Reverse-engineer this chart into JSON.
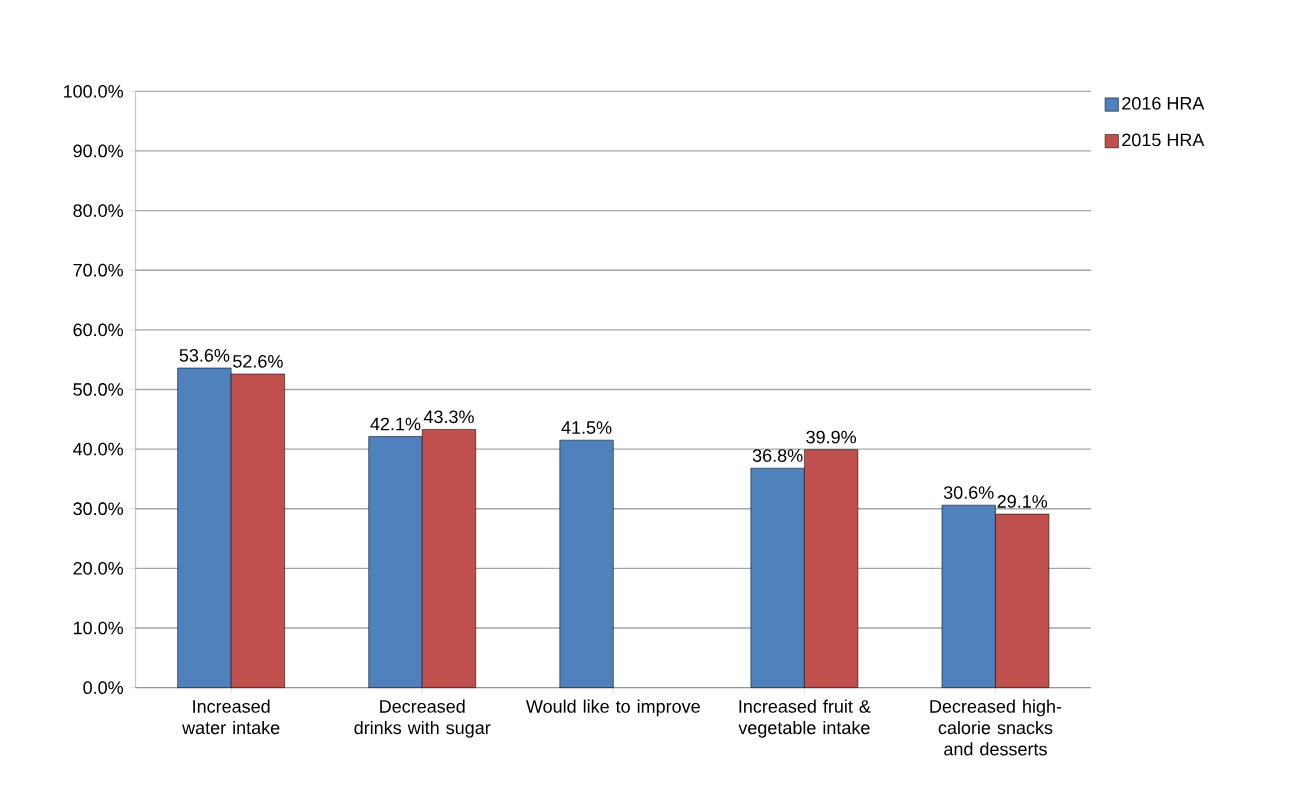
{
  "chart_data": {
    "type": "bar",
    "categories": [
      "Increased water intake",
      "Decreased drinks with sugar",
      "Would like to improve",
      "Increased fruit & vegetable intake",
      "Decreased high-calorie snacks and desserts"
    ],
    "series": [
      {
        "name": "2016 HRA",
        "color": "#4f81bd",
        "values": [
          53.6,
          42.1,
          41.5,
          36.8,
          30.6
        ],
        "value_labels": [
          "53.6%",
          "42.1%",
          "41.5%",
          "36.8%",
          "30.6%"
        ]
      },
      {
        "name": "2015 HRA",
        "color": "#c0504d",
        "values": [
          52.6,
          43.3,
          null,
          39.9,
          29.1
        ],
        "value_labels": [
          "52.6%",
          "43.3%",
          null,
          "39.9%",
          "29.1%"
        ]
      }
    ],
    "ylim": [
      0,
      100
    ],
    "yticks": [
      {
        "value": 0,
        "label": "0.0%"
      },
      {
        "value": 10,
        "label": "10.0%"
      },
      {
        "value": 20,
        "label": "20.0%"
      },
      {
        "value": 30,
        "label": "30.0%"
      },
      {
        "value": 40,
        "label": "40.0%"
      },
      {
        "value": 50,
        "label": "50.0%"
      },
      {
        "value": 60,
        "label": "60.0%"
      },
      {
        "value": 70,
        "label": "70.0%"
      },
      {
        "value": 80,
        "label": "80.0%"
      },
      {
        "value": 90,
        "label": "90.0%"
      },
      {
        "value": 100,
        "label": "100.0%"
      }
    ],
    "grid": "y",
    "legend": "right"
  }
}
